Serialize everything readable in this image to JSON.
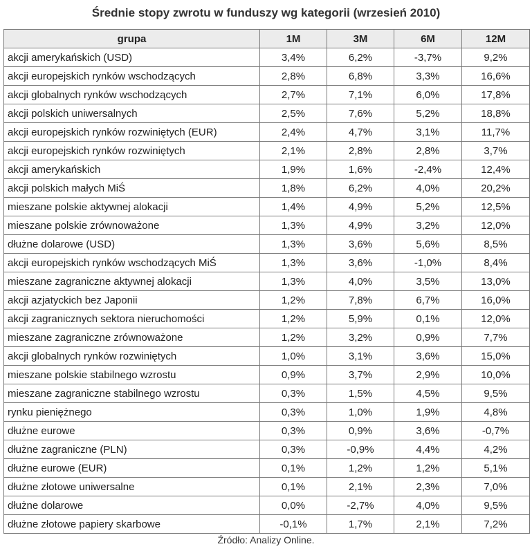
{
  "title": "Średnie stopy zwrotu w funduszy wg kategorii (wrzesień 2010)",
  "table": {
    "headers": [
      "grupa",
      "1M",
      "3M",
      "6M",
      "12M"
    ],
    "rows": [
      [
        "akcji amerykańskich (USD)",
        "3,4%",
        "6,2%",
        "-3,7%",
        "9,2%"
      ],
      [
        "akcji europejskich rynków wschodzących",
        "2,8%",
        "6,8%",
        "3,3%",
        "16,6%"
      ],
      [
        "akcji globalnych rynków wschodzących",
        "2,7%",
        "7,1%",
        "6,0%",
        "17,8%"
      ],
      [
        "akcji polskich uniwersalnych",
        "2,5%",
        "7,6%",
        "5,2%",
        "18,8%"
      ],
      [
        "akcji europejskich rynków rozwiniętych (EUR)",
        "2,4%",
        "4,7%",
        "3,1%",
        "11,7%"
      ],
      [
        "akcji europejskich rynków rozwiniętych",
        "2,1%",
        "2,8%",
        "2,8%",
        "3,7%"
      ],
      [
        "akcji amerykańskich",
        "1,9%",
        "1,6%",
        "-2,4%",
        "12,4%"
      ],
      [
        "akcji polskich małych MiŚ",
        "1,8%",
        "6,2%",
        "4,0%",
        "20,2%"
      ],
      [
        "mieszane polskie aktywnej alokacji",
        "1,4%",
        "4,9%",
        "5,2%",
        "12,5%"
      ],
      [
        "mieszane polskie zrównoważone",
        "1,3%",
        "4,9%",
        "3,2%",
        "12,0%"
      ],
      [
        "dłużne dolarowe (USD)",
        "1,3%",
        "3,6%",
        "5,6%",
        "8,5%"
      ],
      [
        "akcji europejskich rynków wschodzących MiŚ",
        "1,3%",
        "3,6%",
        "-1,0%",
        "8,4%"
      ],
      [
        "mieszane zagraniczne aktywnej alokacji",
        "1,3%",
        "4,0%",
        "3,5%",
        "13,0%"
      ],
      [
        "akcji azjatyckich bez Japonii",
        "1,2%",
        "7,8%",
        "6,7%",
        "16,0%"
      ],
      [
        "akcji zagranicznych sektora nieruchomości",
        "1,2%",
        "5,9%",
        "0,1%",
        "12,0%"
      ],
      [
        "mieszane zagraniczne zrównoważone",
        "1,2%",
        "3,2%",
        "0,9%",
        "7,7%"
      ],
      [
        "akcji globalnych rynków rozwiniętych",
        "1,0%",
        "3,1%",
        "3,6%",
        "15,0%"
      ],
      [
        "mieszane polskie stabilnego wzrostu",
        "0,9%",
        "3,7%",
        "2,9%",
        "10,0%"
      ],
      [
        "mieszane zagraniczne stabilnego wzrostu",
        "0,3%",
        "1,5%",
        "4,5%",
        "9,5%"
      ],
      [
        "rynku pieniężnego",
        "0,3%",
        "1,0%",
        "1,9%",
        "4,8%"
      ],
      [
        "dłużne eurowe",
        "0,3%",
        "0,9%",
        "3,6%",
        "-0,7%"
      ],
      [
        "dłużne zagraniczne (PLN)",
        "0,3%",
        "-0,9%",
        "4,4%",
        "4,2%"
      ],
      [
        "dłużne eurowe (EUR)",
        "0,1%",
        "1,2%",
        "1,2%",
        "5,1%"
      ],
      [
        "dłużne złotowe uniwersalne",
        "0,1%",
        "2,1%",
        "2,3%",
        "7,0%"
      ],
      [
        "dłużne dolarowe",
        "0,0%",
        "-2,7%",
        "4,0%",
        "9,5%"
      ],
      [
        "dłużne złotowe papiery skarbowe",
        "-0,1%",
        "1,7%",
        "2,1%",
        "7,2%"
      ]
    ]
  },
  "source": "Źródło: Analizy Online."
}
